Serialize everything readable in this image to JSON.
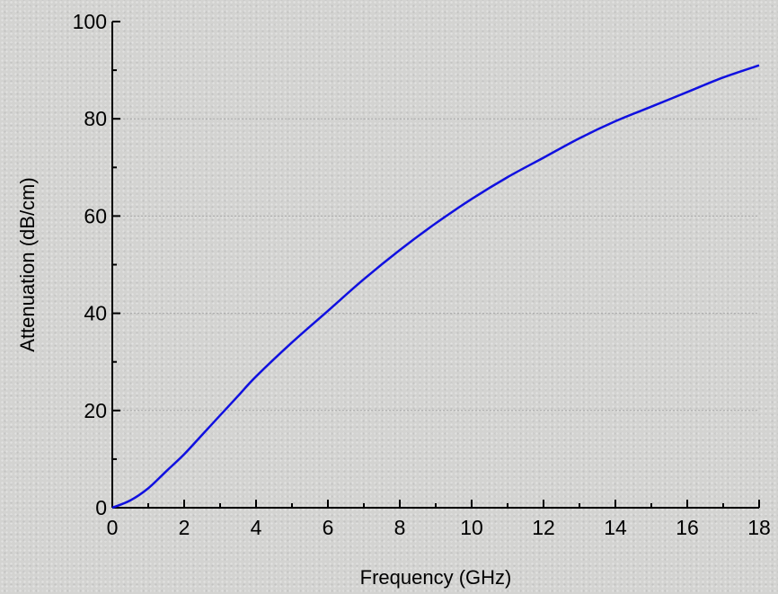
{
  "chart_data": {
    "type": "line",
    "xlabel": "Frequency (GHz)",
    "ylabel": "Attenuation (dB/cm)",
    "xlim": [
      0,
      18
    ],
    "ylim": [
      0,
      100
    ],
    "xticks": [
      "0",
      "2",
      "4",
      "6",
      "8",
      "10",
      "12",
      "14",
      "16",
      "18"
    ],
    "yticks": [
      "0",
      "20",
      "40",
      "60",
      "80",
      "100"
    ],
    "grid": "horizontal dashed at major y ticks",
    "series": [
      {
        "color": "#1010e0",
        "x": [
          0,
          0.5,
          1,
          1.5,
          2,
          2.5,
          3,
          3.5,
          4,
          5,
          6,
          7,
          8,
          9,
          10,
          11,
          12,
          13,
          14,
          15,
          16,
          17,
          18
        ],
        "y": [
          0,
          1.5,
          4,
          7.5,
          11,
          15,
          19,
          23,
          27,
          34,
          40.5,
          47,
          53,
          58.5,
          63.5,
          68,
          72,
          76,
          79.5,
          82.5,
          85.5,
          88.5,
          91
        ]
      }
    ]
  }
}
